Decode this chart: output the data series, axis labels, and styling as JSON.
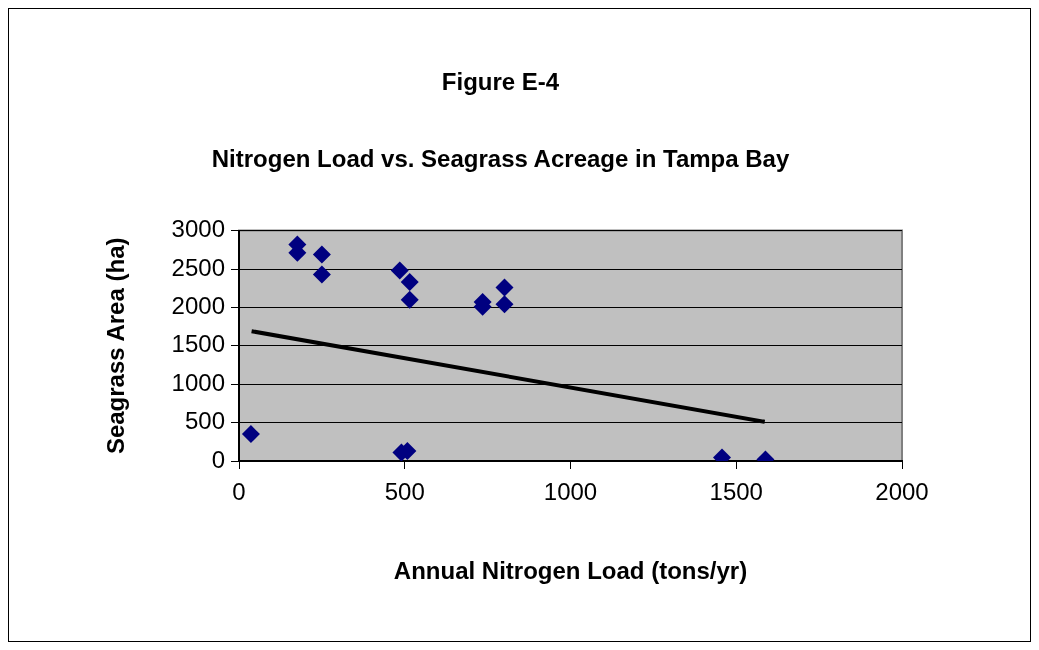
{
  "chart_data": {
    "type": "scatter",
    "title": "Figure E-4",
    "subtitle": "Nitrogen Load vs. Seagrass Acreage in Tampa Bay",
    "xlabel": "Annual Nitrogen Load (tons/yr)",
    "ylabel": "Seagrass Area (ha)",
    "xlim": [
      0,
      2000
    ],
    "xticks": [
      0,
      500,
      1000,
      1500,
      2000
    ],
    "ylim": [
      0,
      3000
    ],
    "yticks": [
      0,
      500,
      1000,
      1500,
      2000,
      2500,
      3000
    ],
    "grid": "y",
    "legend": false,
    "marker": "diamond",
    "series": [
      {
        "color": "#000080",
        "x": [
          36,
          176,
          176,
          250,
          250,
          485,
          515,
          515,
          490,
          508,
          735,
          735,
          801,
          801,
          1457,
          1588
        ],
        "values": [
          350,
          2820,
          2710,
          2690,
          2430,
          2480,
          2330,
          2100,
          110,
          130,
          2070,
          2010,
          2260,
          2040,
          44,
          20
        ]
      },
      {
        "type": "line",
        "color": "#000000",
        "marker": "none",
        "x": [
          38,
          1586
        ],
        "values": [
          1690,
          510
        ]
      }
    ]
  }
}
